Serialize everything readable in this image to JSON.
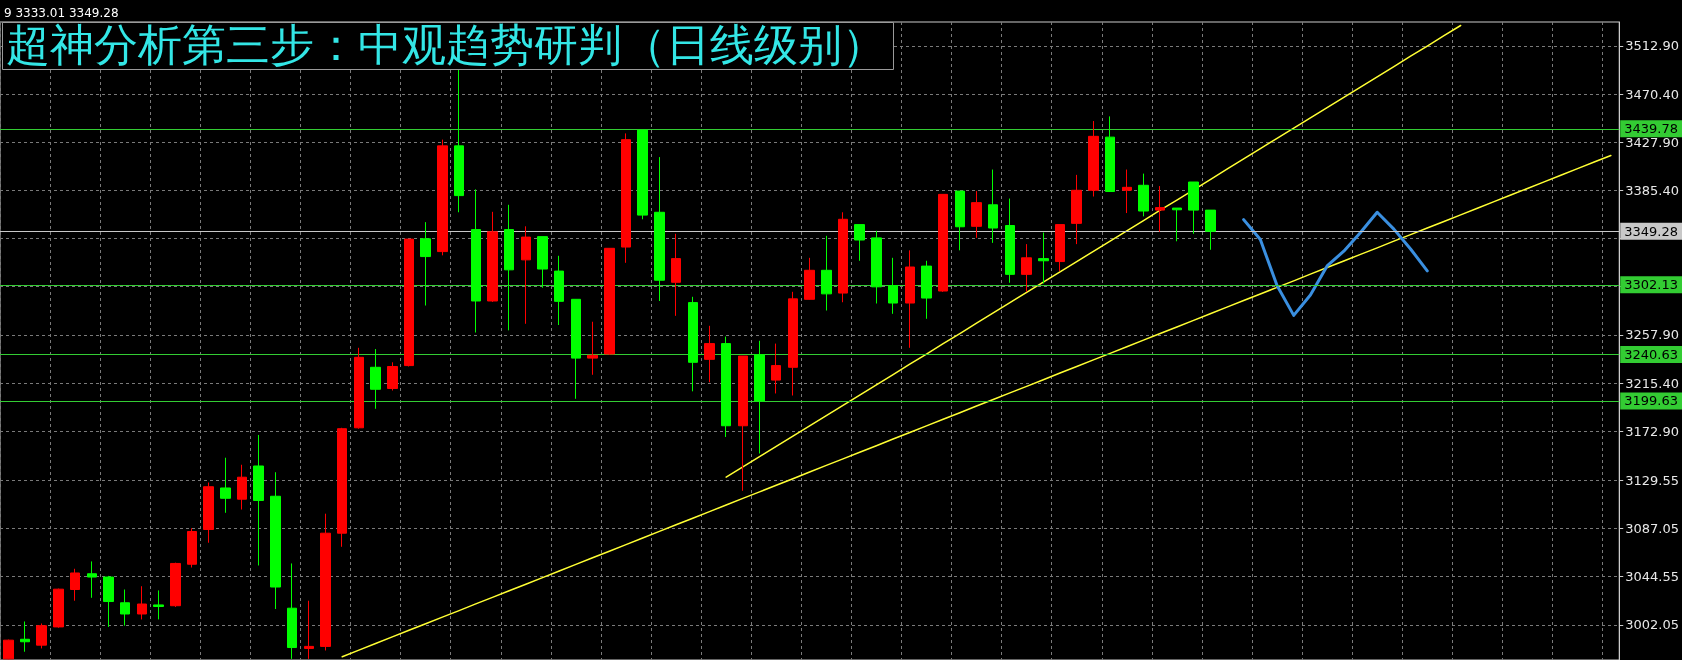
{
  "chart_data": {
    "type": "candlestick",
    "title": "超神分析第三步：中观趋势研判（日线级别）",
    "annotations": [
      "9 3333.01 3349.28"
    ],
    "categories": [
      null,
      null,
      null,
      null,
      null,
      null,
      null,
      null,
      null,
      null,
      null,
      null,
      null,
      null,
      null,
      null,
      null,
      null,
      null,
      null,
      null,
      null,
      null,
      null,
      null,
      null,
      null,
      null,
      null,
      null,
      null,
      null,
      null,
      null,
      null,
      null,
      null,
      null,
      null,
      null,
      null,
      null,
      null,
      null,
      null,
      null,
      null,
      null,
      null,
      null,
      null,
      null,
      null,
      null,
      null,
      null,
      null,
      null,
      null,
      null,
      null,
      null,
      null,
      null,
      null,
      null,
      null,
      null,
      null,
      null,
      null,
      null,
      null,
      null,
      null,
      null,
      null,
      null,
      null,
      null,
      null,
      null,
      null,
      null,
      null,
      null,
      null,
      null,
      null,
      null,
      null,
      null,
      null,
      null,
      null,
      null,
      null
    ],
    "ylim": [
      2971,
      3534
    ],
    "yticks": [
      {
        "value": 3002.05,
        "label": "3002.05"
      },
      {
        "value": 3044.55,
        "label": "3044.55"
      },
      {
        "value": 3087.05,
        "label": "3087.05"
      },
      {
        "value": 3129.55,
        "label": "3129.55"
      },
      {
        "value": 3172.9,
        "label": "3172.90"
      },
      {
        "value": 3215.4,
        "label": "3215.40"
      },
      {
        "value": 3257.9,
        "label": "3257.90"
      },
      {
        "value": 3300.4,
        "label": null
      },
      {
        "value": 3342.9,
        "label": null
      },
      {
        "value": 3385.4,
        "label": "3385.40"
      },
      {
        "value": 3427.9,
        "label": "3427.90"
      },
      {
        "value": 3470.4,
        "label": "3470.40"
      },
      {
        "value": 3512.9,
        "label": "3512.90"
      }
    ],
    "tick_labels": "y",
    "grid": true,
    "ref_lines": [
      {
        "axis": "y",
        "value": 3439.78,
        "label": "3439.78",
        "color": "#33cc33"
      },
      {
        "axis": "y",
        "value": 3349.28,
        "label": "3349.28",
        "color": "#c8c8c8"
      },
      {
        "axis": "y",
        "value": 3302.13,
        "label": "3302.13",
        "color": "#33cc33"
      },
      {
        "axis": "y",
        "value": 3240.63,
        "label": "3240.63",
        "color": "#33cc33"
      },
      {
        "axis": "y",
        "value": 3199.63,
        "label": "3199.63",
        "color": "#33cc33"
      }
    ],
    "series": [
      {
        "ohlc": [
          [
            2972,
            2989,
            2971.5,
            2988.5
          ],
          [
            2989.3,
            3005,
            2978.3,
            2987.1
          ],
          [
            2984.1,
            3003.2,
            2981.2,
            3001.3
          ],
          [
            3000.2,
            3034,
            2999.5,
            3033.5
          ],
          [
            3033.2,
            3051.5,
            3023.3,
            3047.8
          ],
          [
            3047.1,
            3058,
            3025.9,
            3044.2
          ],
          [
            3044.2,
            3045.2,
            3000.2,
            3022.6
          ],
          [
            3021.5,
            3033.2,
            3001.3,
            3011.6
          ],
          [
            3011.6,
            3036.1,
            3006.8,
            3020.4
          ],
          [
            3019.6,
            3032.4,
            3006.8,
            3018.2
          ],
          [
            3018.9,
            3056.9,
            3017.8,
            3056.2
          ],
          [
            3055.5,
            3087.3,
            3052.6,
            3084.4
          ],
          [
            3086.2,
            3127.6,
            3074.5,
            3123.9
          ],
          [
            3122.8,
            3149.5,
            3100.9,
            3113.7
          ],
          [
            3112.9,
            3143.3,
            3103.8,
            3132.3
          ],
          [
            3142.2,
            3169.6,
            3054.4,
            3111.8
          ],
          [
            3115.5,
            3136.7,
            3016,
            3035.4
          ],
          [
            3016.7,
            3056.2,
            2972,
            2982
          ],
          [
            2981.2,
            3023.3,
            2972,
            2983
          ],
          [
            2983,
            3100.1,
            2979.4,
            3082.9
          ],
          [
            3082.9,
            3175.9,
            3070.9,
            3175.1
          ],
          [
            3175.9,
            3246.5,
            3175.1,
            3238.1
          ],
          [
            3229.3,
            3245.4,
            3192.7,
            3209.9
          ],
          [
            3210.6,
            3233.7,
            3208.8,
            3230
          ],
          [
            3230.8,
            3342.4,
            3230,
            3342.4
          ],
          [
            3342.7,
            3357.4,
            3283.8,
            3327
          ],
          [
            3331.4,
            3430.2,
            3328.1,
            3424.7
          ],
          [
            3424.7,
            3493.5,
            3366.1,
            3380.8
          ],
          [
            3350.8,
            3386.3,
            3260,
            3287.8
          ],
          [
            3287.8,
            3366.5,
            3287,
            3348.9
          ],
          [
            3350.8,
            3372.7,
            3261.9,
            3315.3
          ],
          [
            3324.1,
            3353.7,
            3267.7,
            3344.2
          ],
          [
            3344.6,
            3344.6,
            3299.5,
            3316
          ],
          [
            3314.2,
            3327.7,
            3266.6,
            3287.5
          ],
          [
            3289.3,
            3289.3,
            3201.5,
            3237.4
          ],
          [
            3237.4,
            3269.5,
            3222.7,
            3239.9
          ],
          [
            3241,
            3334.3,
            3240.3,
            3334.3
          ],
          [
            3335.4,
            3435.7,
            3321.5,
            3430.2
          ],
          [
            3438.6,
            3438.6,
            3359.9,
            3363.6
          ],
          [
            3366.1,
            3414.8,
            3287.8,
            3306.1
          ],
          [
            3304.3,
            3347.1,
            3274.7,
            3325.2
          ],
          [
            3286.4,
            3291.5,
            3208.1,
            3233.7
          ],
          [
            3236.3,
            3265.9,
            3216.1,
            3250.2
          ],
          [
            3250.2,
            3256.4,
            3167.8,
            3177.7
          ],
          [
            3177.7,
            3239.2,
            3120.3,
            3239.2
          ],
          [
            3240.3,
            3252.7,
            3153.2,
            3199.6
          ],
          [
            3218,
            3250.2,
            3206.2,
            3230.8
          ],
          [
            3229.3,
            3295.9,
            3204.4,
            3289.7
          ],
          [
            3289.3,
            3325.9,
            3289,
            3314.9
          ],
          [
            3314.9,
            3345.3,
            3279.4,
            3294.1
          ],
          [
            3294.8,
            3366.1,
            3286.7,
            3359.9
          ],
          [
            3355.2,
            3355.2,
            3323.3,
            3341.6
          ],
          [
            3343.5,
            3349.7,
            3285.6,
            3300.3
          ],
          [
            3301.4,
            3325.9,
            3276.5,
            3286
          ],
          [
            3286,
            3332.5,
            3246.5,
            3317.8
          ],
          [
            3318.6,
            3323.3,
            3272.1,
            3290.4
          ],
          [
            3296.6,
            3381.9,
            3295.9,
            3381.9
          ],
          [
            3384.8,
            3384.8,
            3332.5,
            3353.3
          ],
          [
            3353.7,
            3384.8,
            3343.5,
            3374.6
          ],
          [
            3372.7,
            3403.8,
            3339.1,
            3352.2
          ],
          [
            3354.4,
            3378.2,
            3303.9,
            3311.3
          ],
          [
            3311.3,
            3338,
            3295.9,
            3325.9
          ],
          [
            3325.2,
            3348.2,
            3303.2,
            3323.3
          ],
          [
            3322.6,
            3355.2,
            3314.2,
            3355.2
          ],
          [
            3356.3,
            3399.1,
            3338,
            3385.5
          ],
          [
            3385.5,
            3446.6,
            3380,
            3433.1
          ],
          [
            3432.4,
            3450.7,
            3384,
            3384.4
          ],
          [
            3385.5,
            3403.8,
            3365.4,
            3388.1
          ],
          [
            3389.9,
            3400.2,
            3362.5,
            3367.2
          ],
          [
            3368,
            3389.2,
            3348.9,
            3370.2
          ],
          [
            3369.8,
            3369.8,
            3340.5,
            3368.3
          ],
          [
            3392.8,
            3392.8,
            3347.1,
            3368
          ],
          [
            3368,
            3368,
            3333.01,
            3349.28
          ],
          null,
          null,
          null,
          null,
          null,
          null,
          null,
          null,
          null,
          null,
          null,
          null,
          null,
          null,
          null,
          null,
          null,
          null,
          null,
          null,
          null,
          null,
          null,
          null
        ],
        "colors": [
          "#ff0000",
          "#00ff00",
          "#ff0000",
          "#ff0000",
          "#ff0000",
          "#00ff00",
          "#00ff00",
          "#00ff00",
          "#ff0000",
          "#00ff00",
          "#ff0000",
          "#ff0000",
          "#ff0000",
          "#00ff00",
          "#ff0000",
          "#00ff00",
          "#00ff00",
          "#00ff00",
          "#ff0000",
          "#ff0000",
          "#ff0000",
          "#ff0000",
          "#00ff00",
          "#ff0000",
          "#ff0000",
          "#00ff00",
          "#ff0000",
          "#00ff00",
          "#00ff00",
          "#ff0000",
          "#00ff00",
          "#ff0000",
          "#00ff00",
          "#00ff00",
          "#00ff00",
          "#ff0000",
          "#ff0000",
          "#ff0000",
          "#00ff00",
          "#00ff00",
          "#ff0000",
          "#00ff00",
          "#ff0000",
          "#00ff00",
          "#ff0000",
          "#00ff00",
          "#ff0000",
          "#ff0000",
          "#ff0000",
          "#00ff00",
          "#ff0000",
          "#00ff00",
          "#00ff00",
          "#00ff00",
          "#ff0000",
          "#00ff00",
          "#ff0000",
          "#00ff00",
          "#ff0000",
          "#00ff00",
          "#00ff00",
          "#ff0000",
          "#00ff00",
          "#ff0000",
          "#ff0000",
          "#ff0000",
          "#00ff00",
          "#ff0000",
          "#00ff00",
          "#ff0000",
          "#00ff00",
          "#00ff00",
          "#00ff00",
          null,
          null,
          null,
          null,
          null,
          null,
          null,
          null,
          null,
          null,
          null,
          null,
          null,
          null,
          null,
          null,
          null,
          null,
          null,
          null,
          null,
          null,
          null,
          null
        ]
      },
      {
        "type": "line",
        "color": "#ffff33",
        "values": [
          null,
          null,
          null,
          null,
          null,
          null,
          null,
          null,
          null,
          null,
          null,
          null,
          null,
          null,
          null,
          null,
          null,
          null,
          null,
          null,
          2973.9,
          2979.7,
          2985.5,
          2991.4,
          2997.2,
          3003.0,
          3008.8,
          3014.6,
          3020.5,
          3026.3,
          3032.1,
          3037.9,
          3043.7,
          3049.6,
          3055.4,
          3061.2,
          3067.0,
          3072.8,
          3078.7,
          3084.5,
          3090.3,
          3096.1,
          3101.9,
          3107.8,
          3113.6,
          3119.4,
          3125.2,
          3131.0,
          3136.9,
          3142.7,
          3148.5,
          3154.3,
          3160.1,
          3166.0,
          3171.8,
          3177.6,
          3183.4,
          3189.2,
          3195.1,
          3200.9,
          3206.7,
          3212.5,
          3218.3,
          3224.2,
          3230.0,
          3235.8,
          3241.6,
          3247.4,
          3253.3,
          3259.1,
          3264.9,
          3270.7,
          3276.5,
          3282.4,
          3288.2,
          3294.0,
          3299.8,
          3305.6,
          3311.5,
          3317.3,
          3323.1,
          3328.9,
          3334.7,
          3340.6,
          3346.4,
          3352.2,
          3358.0,
          3363.8,
          3369.7,
          3375.5,
          3381.3,
          3387.1,
          3392.9,
          3398.8,
          3404.6,
          3410.4,
          3416.2
        ]
      },
      {
        "type": "line",
        "color": "#ffff33",
        "values": [
          null,
          null,
          null,
          null,
          null,
          null,
          null,
          null,
          null,
          null,
          null,
          null,
          null,
          null,
          null,
          null,
          null,
          null,
          null,
          null,
          null,
          null,
          null,
          null,
          null,
          null,
          null,
          null,
          null,
          null,
          null,
          null,
          null,
          null,
          null,
          null,
          null,
          null,
          null,
          null,
          null,
          null,
          null,
          3132.3,
          3141.4,
          3150.4,
          3159.5,
          3168.5,
          3177.6,
          3186.7,
          3195.7,
          3204.8,
          3213.8,
          3222.9,
          3232.0,
          3241.0,
          3250.1,
          3259.1,
          3268.2,
          3277.3,
          3286.3,
          3295.4,
          3304.4,
          3313.5,
          3322.6,
          3331.6,
          3340.7,
          3349.7,
          3358.8,
          3367.9,
          3376.9,
          null,
          3395.0,
          3404.1,
          3413.2,
          3422.2,
          3431.3,
          3440.3,
          3449.4,
          3458.5,
          3467.5,
          3476.6,
          3485.6,
          3494.7,
          3503.8,
          3512.8,
          3521.9,
          3530.9,
          null,
          null,
          null,
          null,
          null,
          null,
          null,
          null,
          null
        ]
      },
      {
        "type": "line",
        "color": "#3a8fe0",
        "values": [
          null,
          null,
          null,
          null,
          null,
          null,
          null,
          null,
          null,
          null,
          null,
          null,
          null,
          null,
          null,
          null,
          null,
          null,
          null,
          null,
          null,
          null,
          null,
          null,
          null,
          null,
          null,
          null,
          null,
          null,
          null,
          null,
          null,
          null,
          null,
          null,
          null,
          null,
          null,
          null,
          null,
          null,
          null,
          null,
          null,
          null,
          null,
          null,
          null,
          null,
          null,
          null,
          null,
          null,
          null,
          null,
          null,
          null,
          null,
          null,
          null,
          null,
          null,
          null,
          null,
          null,
          null,
          null,
          null,
          null,
          null,
          null,
          null,
          null,
          3359.6,
          3342.0,
          3301.4,
          3275.1,
          3293.1,
          3318.7,
          3331.8,
          3348.3,
          3366.1,
          3351.2,
          3333.7,
          3314.4,
          null,
          null,
          null,
          null,
          null,
          null,
          null,
          null,
          null,
          null,
          null
        ]
      }
    ]
  }
}
